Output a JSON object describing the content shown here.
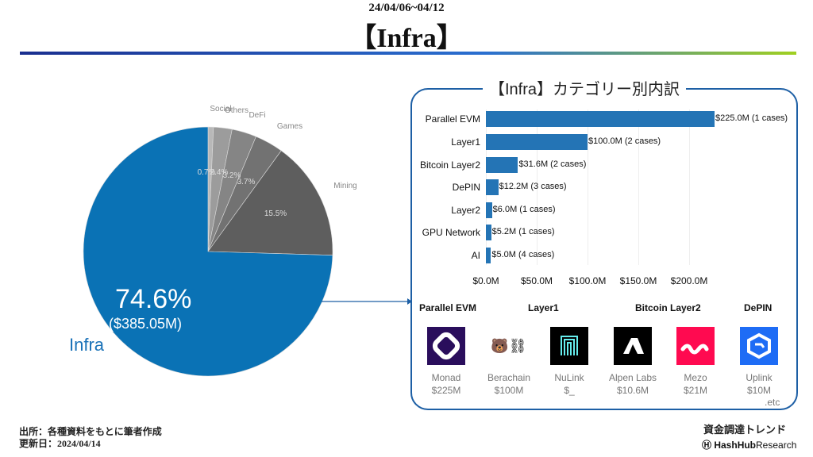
{
  "header": {
    "date": "24/04/06~04/12",
    "title": "【Infra】"
  },
  "chart_data": [
    {
      "type": "pie",
      "title": "",
      "slices": [
        {
          "label": "Social",
          "value": 0.7,
          "color": "#b8b8b8"
        },
        {
          "label": "Others",
          "value": 2.4,
          "color": "#9c9c9c"
        },
        {
          "label": "DeFi",
          "value": 3.2,
          "color": "#858585"
        },
        {
          "label": "Games",
          "value": 3.7,
          "color": "#727272"
        },
        {
          "label": "Mining",
          "value": 15.5,
          "color": "#5e5e5e"
        },
        {
          "label": "Infra",
          "value": 74.6,
          "color": "#0a72b5"
        }
      ],
      "infra_pct_label": "74.6%",
      "infra_amount_label": "($385.05M)",
      "infra_label": "Infra"
    },
    {
      "type": "bar",
      "orientation": "horizontal",
      "title": "【Infra】カテゴリー別内訳",
      "categories": [
        "Parallel EVM",
        "Layer1",
        "Bitcoin Layer2",
        "DePIN",
        "Layer2",
        "GPU Network",
        "AI"
      ],
      "values": [
        225.0,
        100.0,
        31.6,
        12.2,
        6.0,
        5.2,
        5.0
      ],
      "data_labels": [
        "$225.0M (1 cases)",
        "$100.0M (2 cases)",
        "$31.6M (2 cases)",
        "$12.2M (3 cases)",
        "$6.0M (1 cases)",
        "$5.2M (1 cases)",
        "$5.0M (4 cases)"
      ],
      "xticks": [
        "$0.0M",
        "$50.0M",
        "$100.0M",
        "$150.0M",
        "$200.0M"
      ],
      "xtick_values": [
        0,
        50,
        100,
        150,
        200
      ],
      "xlim": [
        0,
        232
      ],
      "color": "#2474b5"
    }
  ],
  "projects": {
    "categories": [
      "Parallel EVM",
      "Layer1",
      "Bitcoin Layer2",
      "DePIN"
    ],
    "items": [
      {
        "name": "Monad",
        "amount": "$225M",
        "bg": "#2a0e5c"
      },
      {
        "name": "Berachain",
        "amount": "$100M",
        "bg": "#ffffff",
        "logo_text": "🐻⛓"
      },
      {
        "name": "NuLink",
        "amount": "$_",
        "bg": "#000000"
      },
      {
        "name": "Alpen Labs",
        "amount": "$10.6M",
        "bg": "#000000"
      },
      {
        "name": "Mezo",
        "amount": "$21M",
        "bg": "#ff0a50"
      },
      {
        "name": "Uplink",
        "amount": "$10M",
        "bg": "#1e6cf5"
      }
    ],
    "etc": ".etc"
  },
  "footer": {
    "source": "出所：各種資料をもとに筆者作成",
    "updated": "更新日：2024/04/14",
    "brand_title": "資金調達トレンド",
    "brand": "HashHub",
    "brand_suffix": "Research"
  }
}
